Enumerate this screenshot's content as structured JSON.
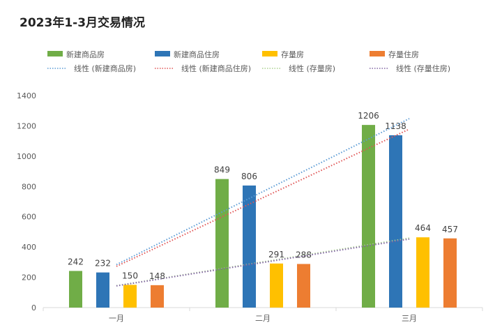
{
  "chart_data": {
    "type": "bar",
    "title": "2023年1-3月交易情况",
    "categories": [
      "一月",
      "二月",
      "三月"
    ],
    "series": [
      {
        "name": "新建商品房",
        "values": [
          242,
          849,
          1206
        ],
        "color": "#70ad47"
      },
      {
        "name": "新建商品住房",
        "values": [
          232,
          806,
          1138
        ],
        "color": "#2e75b6"
      },
      {
        "name": "存量房",
        "values": [
          150,
          291,
          464
        ],
        "color": "#ffc000"
      },
      {
        "name": "存量住房",
        "values": [
          148,
          288,
          457
        ],
        "color": "#ed7d31"
      }
    ],
    "trendlines": [
      {
        "name": "线性 (新建商品房)",
        "series": 0,
        "type": "linear",
        "color": "#5b9bd5"
      },
      {
        "name": "线性 (新建商品住房)",
        "series": 1,
        "type": "linear",
        "color": "#e05555"
      },
      {
        "name": "线性 (存量房)",
        "series": 2,
        "type": "linear",
        "color": "#a9d18e"
      },
      {
        "name": "线性 (存量住房)",
        "series": 3,
        "type": "linear",
        "color": "#8064a2"
      }
    ],
    "yticks": [
      0,
      200,
      400,
      600,
      800,
      1000,
      1200,
      1400
    ],
    "ylim": [
      0,
      1400
    ],
    "xlabel": "",
    "ylabel": "",
    "grid": false,
    "data_labels": true,
    "legend": "top"
  }
}
